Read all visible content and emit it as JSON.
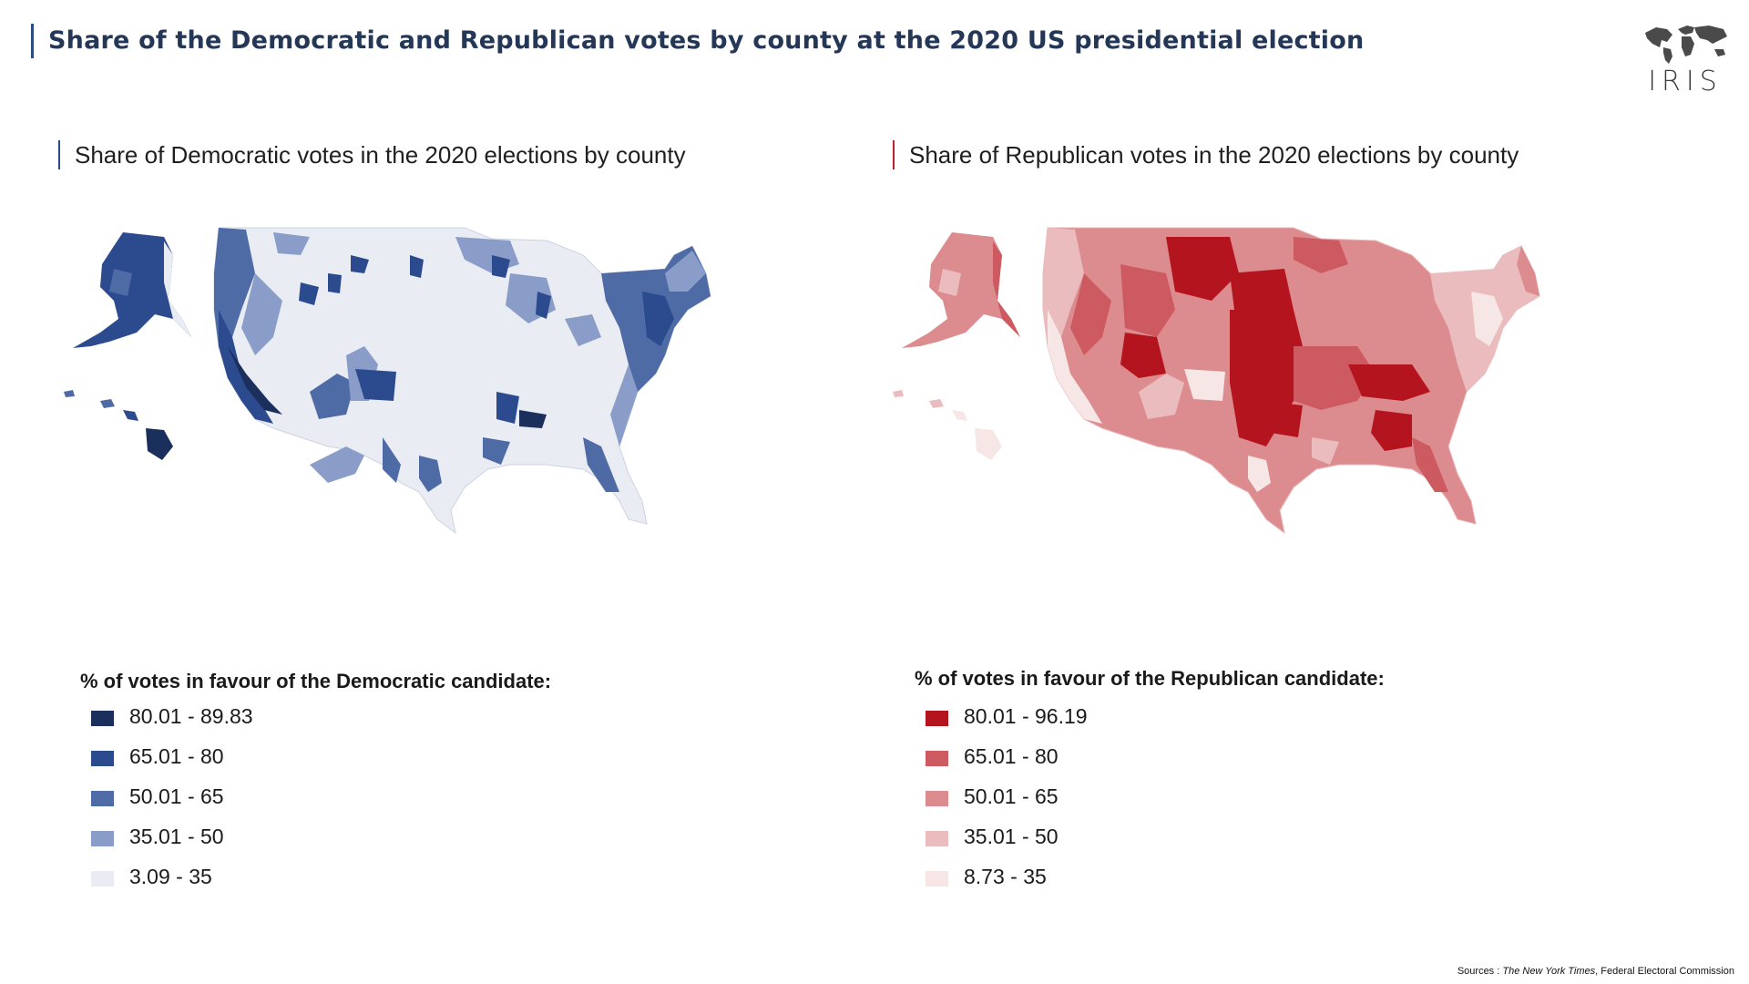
{
  "title": "Share of the Democratic and Republican votes by county at the 2020 US presidential election",
  "logo": {
    "text": "IRIS",
    "icon": "world-map-icon"
  },
  "maps": {
    "democratic": {
      "title": "Share of Democratic votes in the 2020 elections by county",
      "legend_title": "% of votes in favour of the Democratic candidate:",
      "classes": [
        {
          "label": "80.01 - 89.83",
          "color": "#1b2f5c"
        },
        {
          "label": "65.01 - 80",
          "color": "#2c4a8e"
        },
        {
          "label": "50.01 - 65",
          "color": "#4f6ba5"
        },
        {
          "label": "35.01 - 50",
          "color": "#8a9dc8"
        },
        {
          "label": "3.09 - 35",
          "color": "#e9ecf3"
        }
      ]
    },
    "republican": {
      "title": "Share of Republican votes in the 2020 elections by county",
      "legend_title": "% of votes in favour of the Republican candidate:",
      "classes": [
        {
          "label": "80.01 - 96.19",
          "color": "#b4141e"
        },
        {
          "label": "65.01 - 80",
          "color": "#cd5a60"
        },
        {
          "label": "50.01 - 65",
          "color": "#dc8c8f"
        },
        {
          "label": "35.01 - 50",
          "color": "#ebbcbd"
        },
        {
          "label": "8.73 - 35",
          "color": "#f7e6e6"
        }
      ]
    }
  },
  "sources": {
    "prefix": "Sources : ",
    "publication": "The New York Times",
    "rest": ", Federal Electoral Commission"
  }
}
